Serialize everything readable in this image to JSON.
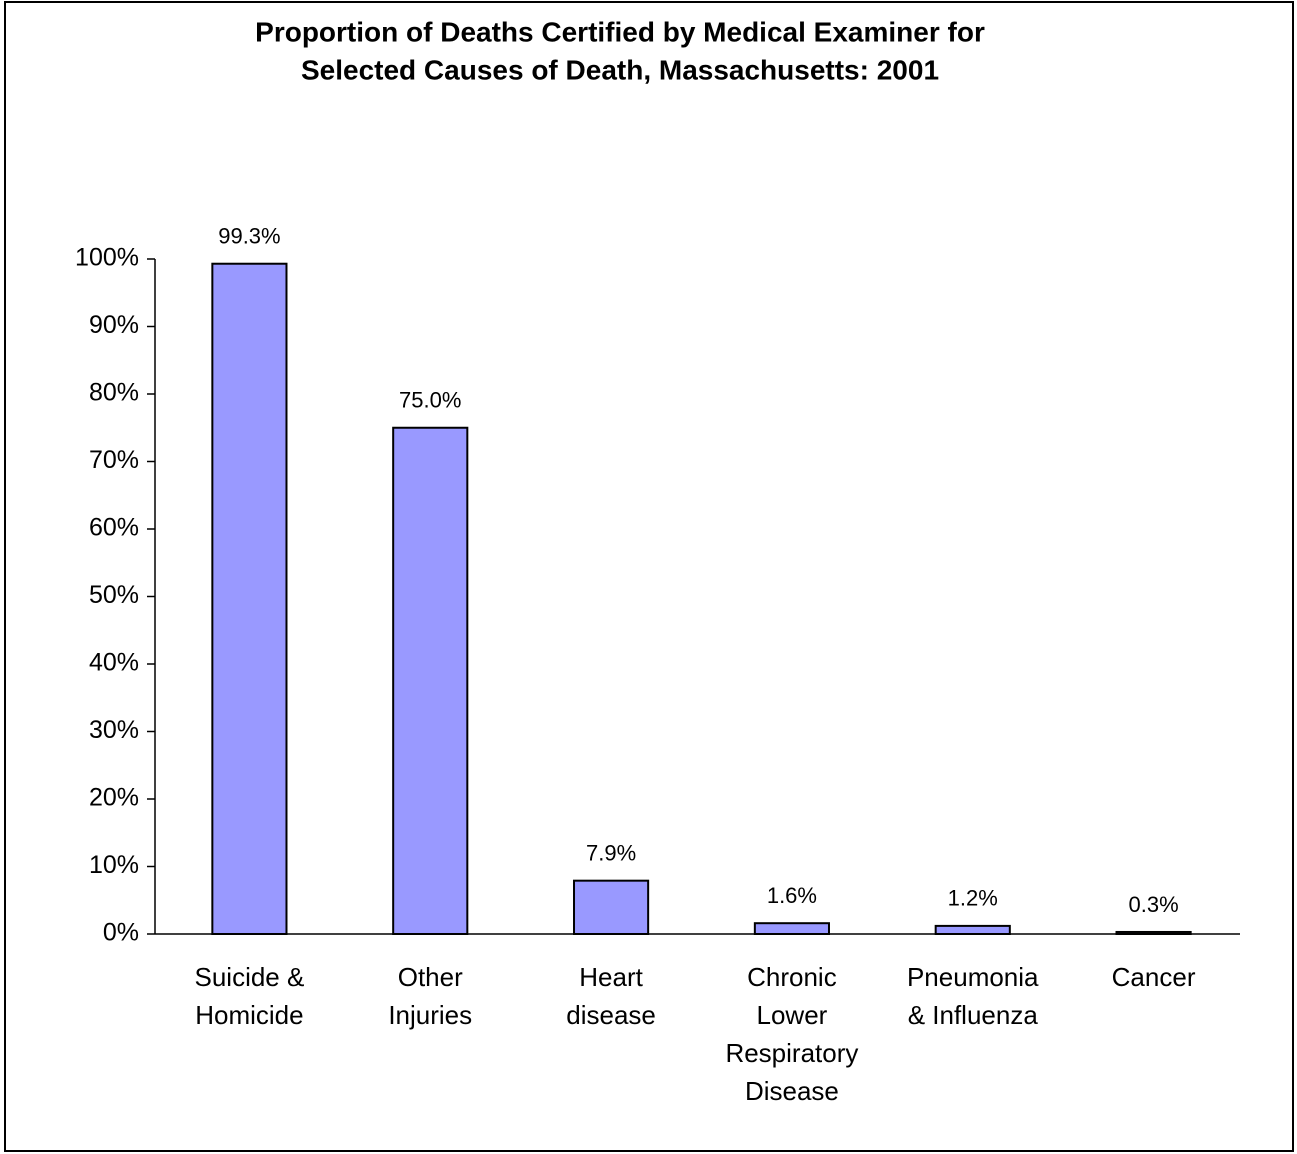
{
  "chart_data": {
    "type": "bar",
    "title": [
      "Proportion of Deaths Certified by Medical Examiner for",
      "Selected Causes of Death, Massachusetts: 2001"
    ],
    "categories": [
      [
        "Suicide &",
        "Homicide"
      ],
      [
        "Other",
        "Injuries"
      ],
      [
        "Heart",
        "disease"
      ],
      [
        "Chronic",
        "Lower",
        "Respiratory",
        "Disease"
      ],
      [
        "Pneumonia",
        "& Influenza"
      ],
      [
        "Cancer"
      ]
    ],
    "values": [
      99.3,
      75.0,
      7.9,
      1.6,
      1.2,
      0.3
    ],
    "value_labels": [
      "99.3%",
      "75.0%",
      "7.9%",
      "1.6%",
      "1.2%",
      "0.3%"
    ],
    "color": "#9999ff",
    "ylim": [
      0,
      100
    ],
    "yticks": [
      {
        "value": 0,
        "label": "0%"
      },
      {
        "value": 10,
        "label": "10%"
      },
      {
        "value": 20,
        "label": "20%"
      },
      {
        "value": 30,
        "label": "30%"
      },
      {
        "value": 40,
        "label": "40%"
      },
      {
        "value": 50,
        "label": "50%"
      },
      {
        "value": 60,
        "label": "60%"
      },
      {
        "value": 70,
        "label": "70%"
      },
      {
        "value": 80,
        "label": "80%"
      },
      {
        "value": 90,
        "label": "90%"
      },
      {
        "value": 100,
        "label": "100%"
      }
    ],
    "grid": false
  }
}
